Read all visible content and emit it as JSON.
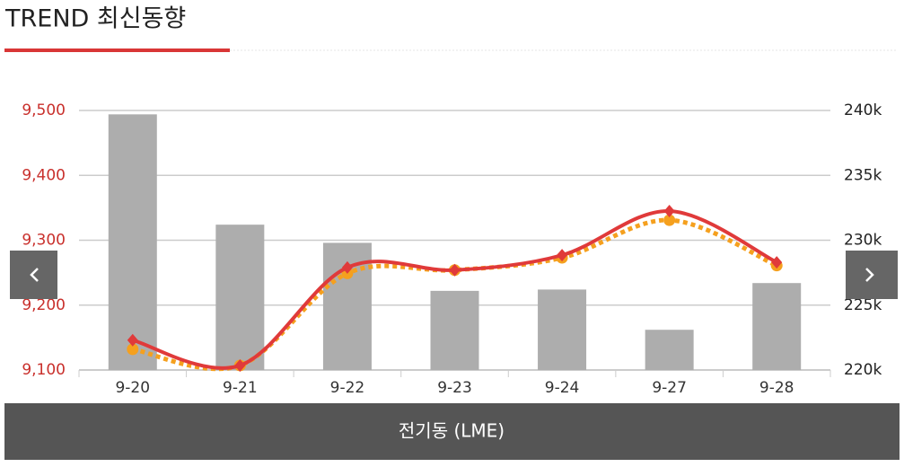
{
  "chart_data": {
    "type": "combo",
    "title": "TREND 최신동향",
    "caption": "전기동 (LME)",
    "categories": [
      "9-20",
      "9-21",
      "9-22",
      "9-23",
      "9-24",
      "9-27",
      "9-28"
    ],
    "ylim": [
      9100,
      9500
    ],
    "yticks": [
      {
        "value": 9100,
        "label": "9,100"
      },
      {
        "value": 9200,
        "label": "9,200"
      },
      {
        "value": 9300,
        "label": "9,300"
      },
      {
        "value": 9400,
        "label": "9,400"
      },
      {
        "value": 9500,
        "label": "9,500"
      }
    ],
    "y2lim": [
      220000,
      240000
    ],
    "y2ticks": [
      {
        "value": 220000,
        "label": "220k"
      },
      {
        "value": 225000,
        "label": "225k"
      },
      {
        "value": 230000,
        "label": "230k"
      },
      {
        "value": 235000,
        "label": "235k"
      },
      {
        "value": 240000,
        "label": "240k"
      }
    ],
    "grid": true,
    "series": [
      {
        "type": "bar",
        "axis": "y2",
        "color": "#adadad",
        "values": [
          239700,
          231200,
          229800,
          226100,
          226200,
          223100,
          226700
        ]
      },
      {
        "type": "line",
        "style": "dotted",
        "marker": "circle",
        "color": "#f5a01e",
        "values": [
          9132,
          9107,
          9249,
          9254,
          9273,
          9331,
          9261
        ]
      },
      {
        "type": "line",
        "style": "solid",
        "marker": "diamond",
        "color": "#e03a3a",
        "values": [
          9146,
          9107,
          9258,
          9254,
          9277,
          9345,
          9266
        ]
      }
    ]
  }
}
